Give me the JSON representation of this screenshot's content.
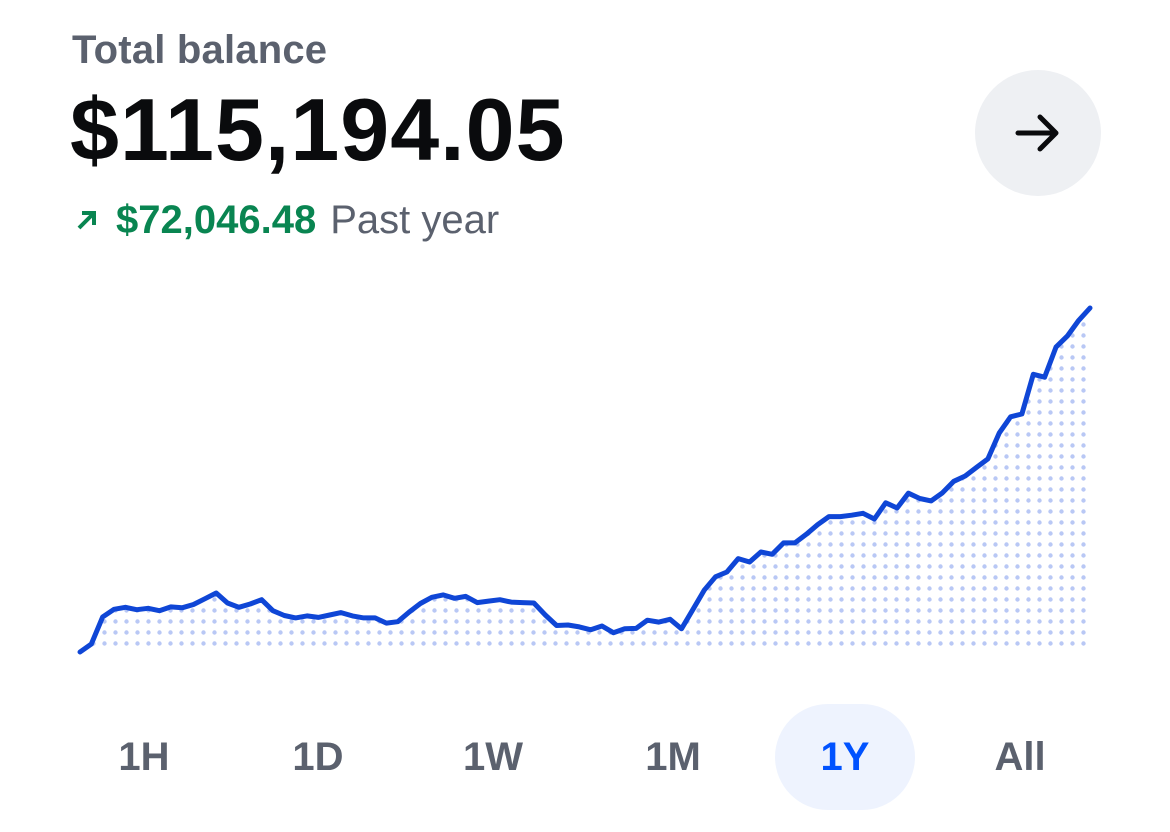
{
  "header": {
    "label": "Total balance",
    "amount": "$115,194.05",
    "change_amount": "$72,046.48",
    "change_period": "Past year",
    "change_direction": "up",
    "change_color": "#098551"
  },
  "nav_button": {
    "icon": "arrow-right-icon"
  },
  "colors": {
    "line": "#0f46d6",
    "fill_dots": "#b9c8f5",
    "active_bg": "#eef3fe",
    "active_text": "#0052ff",
    "inactive_text": "#5b616e"
  },
  "timeframes": [
    {
      "label": "1H",
      "active": false
    },
    {
      "label": "1D",
      "active": false
    },
    {
      "label": "1W",
      "active": false
    },
    {
      "label": "1M",
      "active": false
    },
    {
      "label": "1Y",
      "active": true
    },
    {
      "label": "All",
      "active": false
    }
  ],
  "chart_data": {
    "type": "area",
    "title": "",
    "xlabel": "",
    "ylabel": "",
    "grid": false,
    "series": [
      {
        "values": [
          43148,
          44800,
          50500,
          52100,
          52500,
          52000,
          52300,
          51800,
          52600,
          52400,
          53100,
          54300,
          55500,
          53400,
          52500,
          53200,
          54100,
          51800,
          50800,
          50300,
          50700,
          50400,
          50900,
          51400,
          50700,
          50300,
          50300,
          49200,
          49500,
          51500,
          53300,
          54600,
          55100,
          54400,
          54800,
          53500,
          53800,
          54100,
          53600,
          53500,
          53400,
          50900,
          48700,
          48800,
          48400,
          47800,
          48600,
          47200,
          48000,
          48100,
          49800,
          49400,
          50000,
          48000,
          52000,
          56100,
          58900,
          59900,
          62700,
          62000,
          64100,
          63600,
          66000,
          66000,
          67800,
          69800,
          71500,
          71500,
          71800,
          72200,
          71000,
          74400,
          73300,
          76400,
          75300,
          74800,
          76500,
          78900,
          80000,
          81800,
          83600,
          89000,
          92400,
          93000,
          101300,
          100700,
          107000,
          109300,
          112600,
          115194
        ]
      }
    ]
  }
}
